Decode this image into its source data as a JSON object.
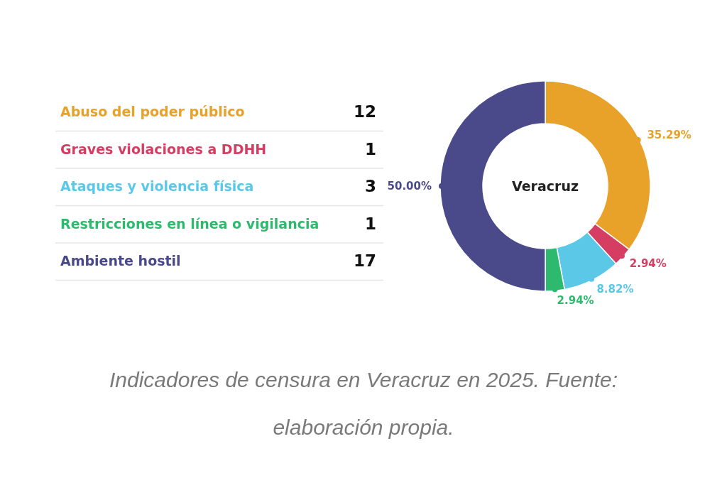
{
  "chart_data": [
    {
      "type": "other",
      "categories": [
        "Abuso del poder público",
        "Graves violaciones a DDHH",
        "Ataques y violencia física",
        "Restricciones en línea o vigilancia",
        "Ambiente hostil"
      ],
      "values": [
        12,
        1,
        3,
        1,
        17
      ],
      "colors": [
        "#e8a22a",
        "#d63d62",
        "#5bc8e8",
        "#2dba6e",
        "#4a4a8a"
      ],
      "data_labels": true,
      "annotations": [
        "Indicadores de censura en Veracruz en 2025. Fuente: elaboración propia."
      ]
    },
    {
      "type": "donut",
      "title": "Veracruz",
      "categories": [
        null,
        null,
        null,
        null,
        null
      ],
      "values": [
        35.29,
        2.94,
        8.82,
        2.94,
        50.0
      ],
      "colors": [
        "#e8a22a",
        "#d63d62",
        "#5bc8e8",
        "#2dba6e",
        "#4a4a8a"
      ],
      "value_labels": [
        "35.29%",
        "2.94%",
        "8.82%",
        "2.94%",
        "50.00%"
      ]
    }
  ]
}
